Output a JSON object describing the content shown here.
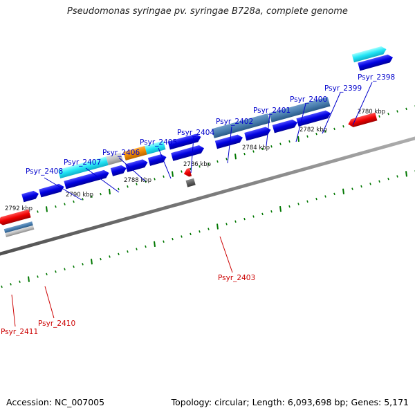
{
  "title": "Pseudomonas syringae pv. syringae B728a, complete genome",
  "accession_label": "Accession: NC_007005",
  "summary_label": "Topology: circular; Length: 6,093,698 bp; Genes: 5,171",
  "colors": {
    "forward_gene": "#0000dd",
    "reverse_gene": "#ee0000",
    "blue_label": "#0000cc",
    "red_label": "#cc0000",
    "backbone": "#808080",
    "tick": "#007700"
  },
  "scale_labels": [
    "2780 kbp",
    "2782 kbp",
    "2784 kbp",
    "2786 kbp",
    "2788 kbp",
    "2790 kbp",
    "2792 kbp"
  ],
  "gene_labels": {
    "psyr_2398": "Psyr_2398",
    "psyr_2399": "Psyr_2399",
    "psyr_2400": "Psyr_2400",
    "psyr_2401": "Psyr_2401",
    "psyr_2402": "Psyr_2402",
    "psyr_2403": "Psyr_2403",
    "psyr_2404": "Psyr_2404",
    "psyr_2405": "Psyr_2405",
    "psyr_2406": "Psyr_2406",
    "psyr_2407": "Psyr_2407",
    "psyr_2408": "Psyr_2408",
    "psyr_2410": "Psyr_2410",
    "psyr_2411": "Psyr_2411"
  }
}
